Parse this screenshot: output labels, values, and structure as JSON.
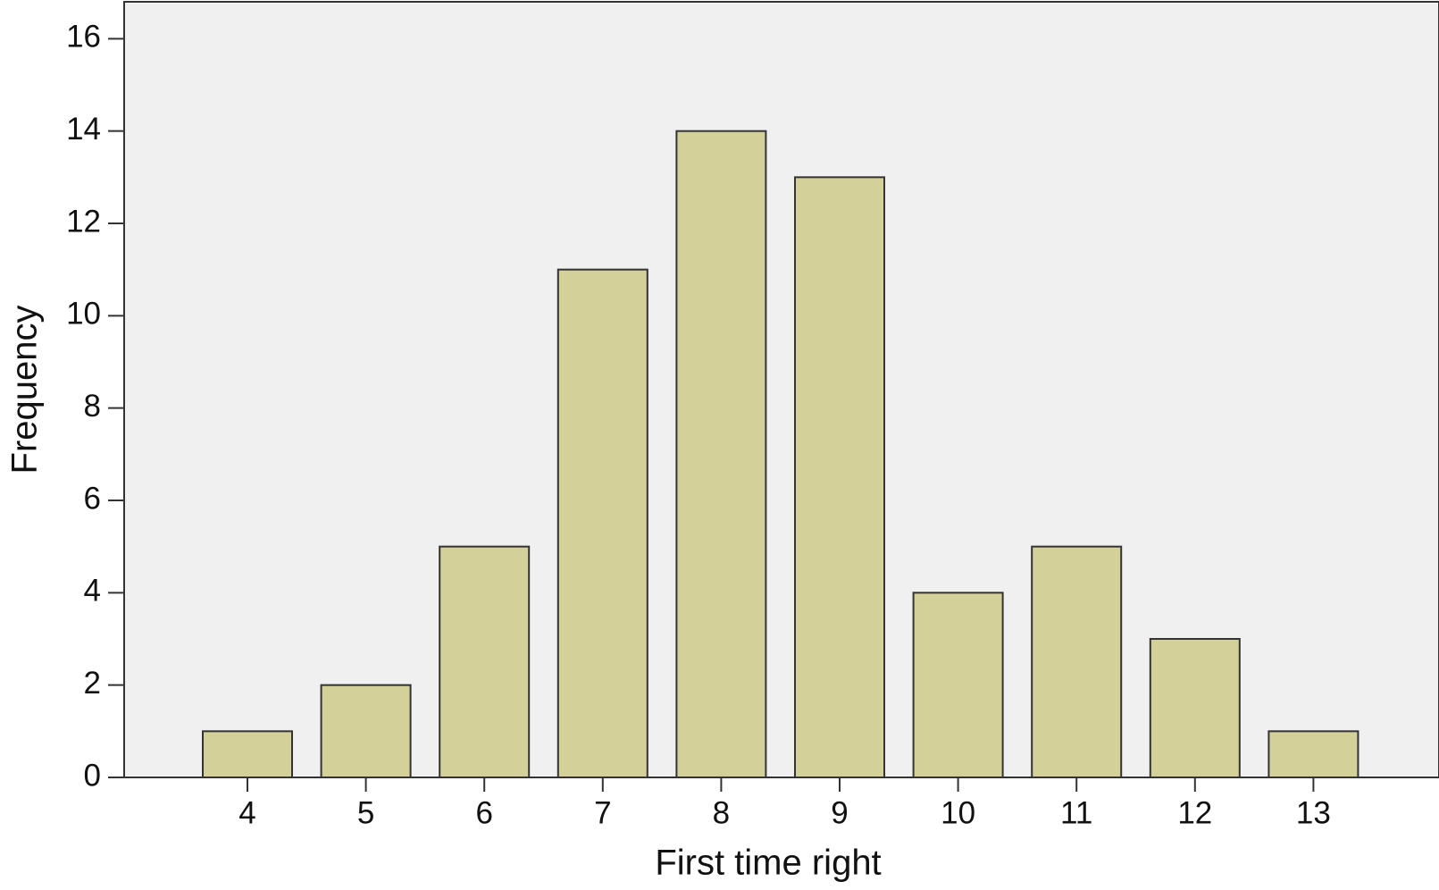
{
  "chart_data": {
    "type": "bar",
    "x_label": "First time right",
    "y_label": "Frequency",
    "categories": [
      "4",
      "5",
      "6",
      "7",
      "8",
      "9",
      "10",
      "11",
      "12",
      "13"
    ],
    "values": [
      1,
      2,
      5,
      11,
      14,
      13,
      4,
      5,
      3,
      1
    ],
    "color": "#d4d09a",
    "background": "#f0f0f0",
    "ylim": [
      0,
      16.8
    ],
    "yticks": [
      0,
      2,
      4,
      6,
      8,
      10,
      12,
      14,
      16
    ],
    "grid": false
  }
}
